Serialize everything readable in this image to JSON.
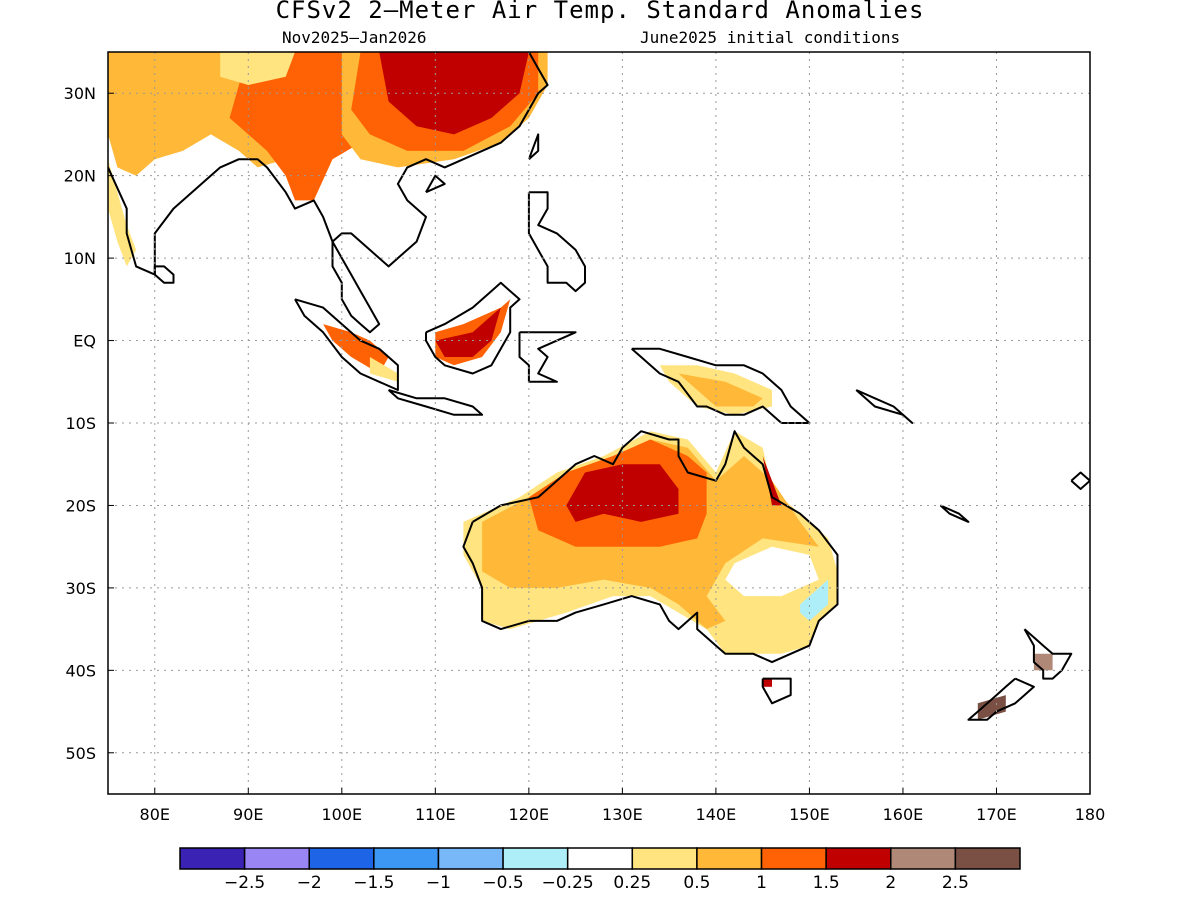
{
  "title": "CFSv2 2—Meter Air Temp. Standard Anomalies",
  "subtitle_left": "Nov2025—Jan2026",
  "subtitle_right": "June2025 initial conditions",
  "map": {
    "lon_range": [
      75,
      180
    ],
    "lat_range": [
      -55,
      35
    ],
    "lat_ticks": [
      {
        "value": 30,
        "label": "30N"
      },
      {
        "value": 20,
        "label": "20N"
      },
      {
        "value": 10,
        "label": "10N"
      },
      {
        "value": 0,
        "label": "EQ"
      },
      {
        "value": -10,
        "label": "10S"
      },
      {
        "value": -20,
        "label": "20S"
      },
      {
        "value": -30,
        "label": "30S"
      },
      {
        "value": -40,
        "label": "40S"
      },
      {
        "value": -50,
        "label": "50S"
      }
    ],
    "lon_ticks": [
      {
        "value": 80,
        "label": "80E"
      },
      {
        "value": 90,
        "label": "90E"
      },
      {
        "value": 100,
        "label": "100E"
      },
      {
        "value": 110,
        "label": "110E"
      },
      {
        "value": 120,
        "label": "120E"
      },
      {
        "value": 130,
        "label": "130E"
      },
      {
        "value": 140,
        "label": "140E"
      },
      {
        "value": 150,
        "label": "150E"
      },
      {
        "value": 160,
        "label": "160E"
      },
      {
        "value": 170,
        "label": "170E"
      },
      {
        "value": 180,
        "label": "180"
      }
    ],
    "grid": "dotted"
  },
  "colorbar": {
    "colors": [
      "#3a22b4",
      "#9a85f5",
      "#1e64e6",
      "#3c96f4",
      "#78b8f8",
      "#aeeef8",
      "#ffffff",
      "#ffe480",
      "#ffb838",
      "#ff6204",
      "#c00000",
      "#b08878",
      "#7a5044"
    ],
    "labels": [
      "−2.5",
      "−2",
      "−1.5",
      "−1",
      "−0.5",
      "−0.25",
      "0.25",
      "0.5",
      "1",
      "1.5",
      "2",
      "2.5"
    ]
  },
  "anomaly_regions": [
    {
      "name": "southern-china-max",
      "level": "2"
    },
    {
      "name": "northern-australia-max",
      "level": "2"
    },
    {
      "name": "borneo-max",
      "level": "2"
    },
    {
      "name": "southeast-australia-cool",
      "level": "-0.5"
    },
    {
      "name": "new-zealand-warm",
      "level": "2.5"
    }
  ]
}
